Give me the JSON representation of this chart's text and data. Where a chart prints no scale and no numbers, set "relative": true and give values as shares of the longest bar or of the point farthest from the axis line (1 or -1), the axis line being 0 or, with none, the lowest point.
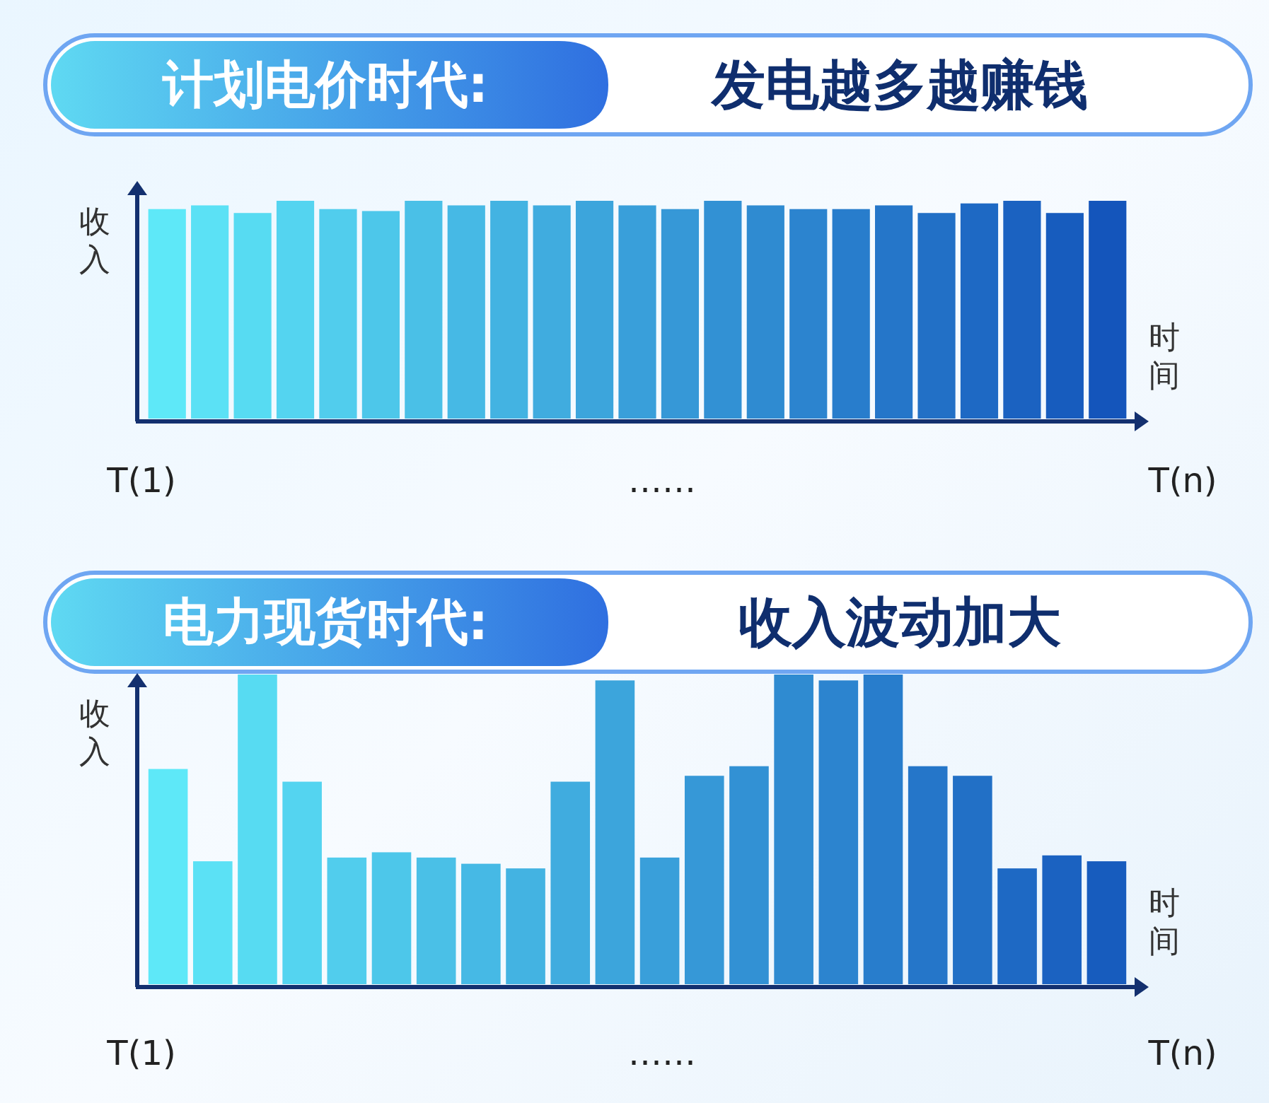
{
  "chart_data": [
    {
      "type": "bar",
      "relative": true,
      "title": "计划电价时代:",
      "subtitle": "发电越多越赚钱",
      "xlabel": "时间",
      "ylabel": "收入",
      "annotations": [
        "T(1)",
        "……",
        "T(n)"
      ],
      "categories": [
        null,
        null,
        null,
        null,
        null,
        null,
        null,
        null,
        null,
        null,
        null,
        null,
        null,
        null,
        null,
        null,
        null,
        null,
        null,
        null,
        null,
        null,
        null
      ],
      "values": [
        0.962,
        0.979,
        0.944,
        1,
        0.962,
        0.953,
        1,
        0.979,
        1,
        0.979,
        1,
        0.979,
        0.962,
        1,
        0.979,
        0.962,
        0.962,
        0.979,
        0.944,
        0.988,
        1,
        0.944,
        1
      ],
      "colors": [
        "#5ee8f8",
        "#5be1f5",
        "#57dbf2",
        "#54d4f0",
        "#51cded",
        "#4dc7ea",
        "#4ac0e7",
        "#46b9e5",
        "#43b3e2",
        "#40acdf",
        "#3ca5dc",
        "#399fda",
        "#3698d7",
        "#3291d4",
        "#2f8bd1",
        "#2c84cf",
        "#287dcc",
        "#2576c9",
        "#2270c6",
        "#1e69c4",
        "#1b62c1",
        "#175cbe",
        "#1455bb"
      ]
    },
    {
      "type": "bar",
      "relative": true,
      "title": "电力现货时代:",
      "subtitle": "收入波动加大",
      "xlabel": "时间",
      "ylabel": "收入",
      "annotations": [
        "T(1)",
        "……",
        "T(n)"
      ],
      "categories": [
        null,
        null,
        null,
        null,
        null,
        null,
        null,
        null,
        null,
        null,
        null,
        null,
        null,
        null,
        null,
        null,
        null,
        null,
        null,
        null,
        null,
        null
      ],
      "values": [
        0.695,
        0.397,
        1,
        0.654,
        0.409,
        0.426,
        0.409,
        0.389,
        0.374,
        0.654,
        0.981,
        0.409,
        0.673,
        0.704,
        1,
        0.981,
        1,
        0.704,
        0.673,
        0.374,
        0.416,
        0.397
      ],
      "colors": [
        "#5ee8f8",
        "#5be1f5",
        "#57dbf2",
        "#54d4f0",
        "#51cded",
        "#4dc7ea",
        "#4ac0e7",
        "#46b9e5",
        "#43b3e2",
        "#40acdf",
        "#3ca5dc",
        "#399fda",
        "#3698d7",
        "#3291d4",
        "#2f8bd1",
        "#2c84cf",
        "#287dcc",
        "#2576c9",
        "#2270c6",
        "#1e69c4",
        "#1b62c1",
        "#175cbe"
      ]
    }
  ]
}
